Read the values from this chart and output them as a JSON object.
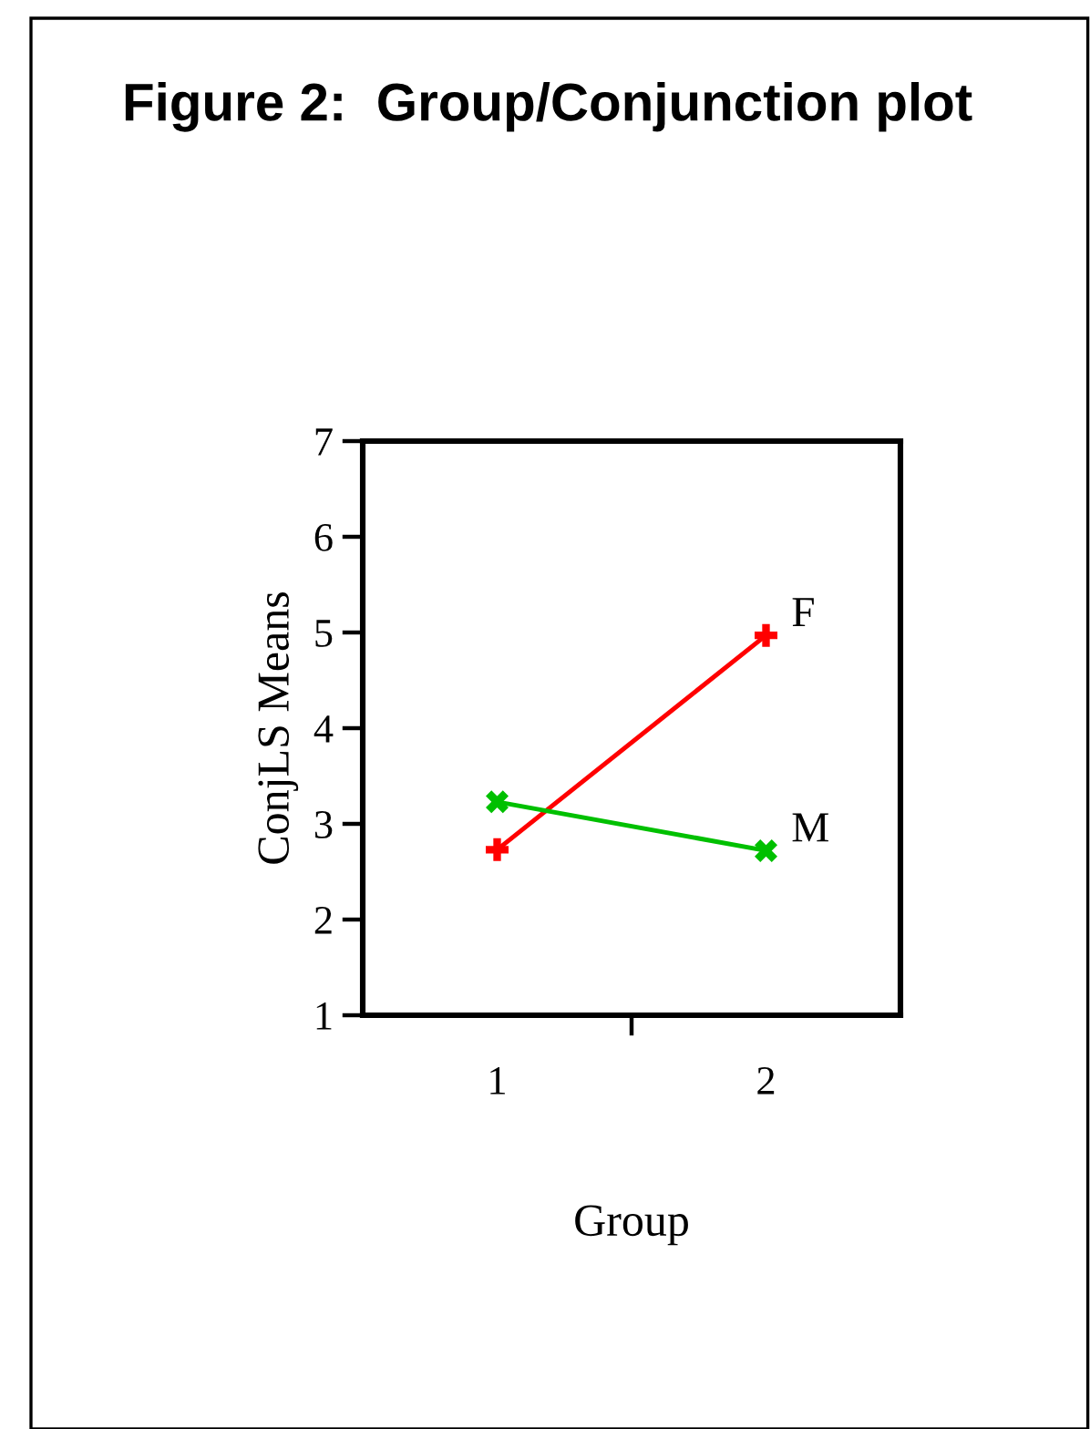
{
  "chart_data": {
    "type": "line",
    "title": "Figure 2:  Group/Conjunction plot",
    "xlabel": "Group",
    "ylabel": "ConjLS Means",
    "x": [
      1,
      2
    ],
    "series": [
      {
        "name": "F",
        "color": "#ff0000",
        "values": [
          2.73,
          4.97
        ],
        "marker": "plus"
      },
      {
        "name": "M",
        "color": "#00c000",
        "values": [
          3.23,
          2.72
        ],
        "marker": "cross"
      }
    ],
    "xlim": [
      0.5,
      2.5
    ],
    "xticks": [
      1,
      {
        "value": 1.5,
        "label": null
      },
      2
    ],
    "ylim": [
      1,
      7
    ],
    "yticks": [
      1,
      2,
      3,
      4,
      5,
      6,
      7
    ],
    "grid": false,
    "legend": false,
    "line_style": "solid"
  }
}
